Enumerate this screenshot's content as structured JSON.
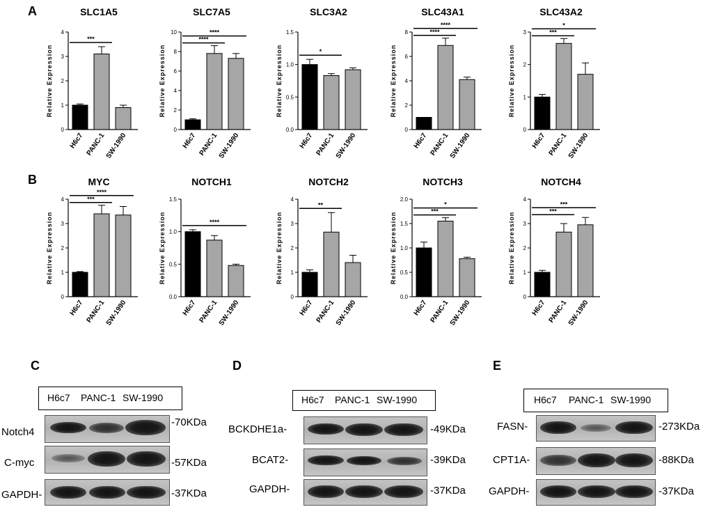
{
  "panel_labels": {
    "A": "A",
    "B": "B",
    "C": "C",
    "D": "D",
    "E": "E"
  },
  "chart_data": [
    {
      "type": "bar",
      "title": "SLC1A5",
      "ylabel": "Relative Expression",
      "categories": [
        "H6c7",
        "PANC-1",
        "SW-1990"
      ],
      "values": [
        1.0,
        3.1,
        0.9
      ],
      "errors": [
        0.05,
        0.3,
        0.1
      ],
      "ylim": [
        0,
        4
      ],
      "yticks": [
        0,
        1,
        2,
        3,
        4
      ],
      "significance": [
        {
          "from": 0,
          "to": 1,
          "label": "***"
        }
      ]
    },
    {
      "type": "bar",
      "title": "SLC7A5",
      "ylabel": "Relative Expression",
      "categories": [
        "H6c7",
        "PANC-1",
        "SW-1990"
      ],
      "values": [
        1.0,
        7.8,
        7.3
      ],
      "errors": [
        0.1,
        0.8,
        0.5
      ],
      "ylim": [
        0,
        10
      ],
      "yticks": [
        0,
        2,
        4,
        6,
        8,
        10
      ],
      "significance": [
        {
          "from": 0,
          "to": 1,
          "label": "****"
        },
        {
          "from": 0,
          "to": 2,
          "label": "****"
        }
      ]
    },
    {
      "type": "bar",
      "title": "SLC3A2",
      "ylabel": "Relative Expression",
      "categories": [
        "H6c7",
        "PANC-1",
        "SW-1990"
      ],
      "values": [
        1.0,
        0.83,
        0.92
      ],
      "errors": [
        0.08,
        0.03,
        0.03
      ],
      "ylim": [
        0,
        1.5
      ],
      "yticks": [
        "0.0",
        "0.5",
        "1.0",
        "1.5"
      ],
      "significance": [
        {
          "from": 0,
          "to": 1,
          "label": "*"
        }
      ]
    },
    {
      "type": "bar",
      "title": "SLC43A1",
      "ylabel": "Relative Expression",
      "categories": [
        "H6c7",
        "PANC-1",
        "SW-1990"
      ],
      "values": [
        1.0,
        6.9,
        4.1
      ],
      "errors": [
        0.0,
        0.6,
        0.2
      ],
      "ylim": [
        0,
        8
      ],
      "yticks": [
        0,
        2,
        4,
        6,
        8
      ],
      "significance": [
        {
          "from": 0,
          "to": 1,
          "label": "****"
        },
        {
          "from": 0,
          "to": 2,
          "label": "****"
        }
      ]
    },
    {
      "type": "bar",
      "title": "SLC43A2",
      "ylabel": "Relative Expression",
      "categories": [
        "H6c7",
        "PANC-1",
        "SW-1990"
      ],
      "values": [
        1.0,
        2.65,
        1.7
      ],
      "errors": [
        0.08,
        0.15,
        0.35
      ],
      "ylim": [
        0,
        3
      ],
      "yticks": [
        0,
        1,
        2,
        3
      ],
      "significance": [
        {
          "from": 0,
          "to": 1,
          "label": "***"
        },
        {
          "from": 0,
          "to": 2,
          "label": "*"
        }
      ]
    },
    {
      "type": "bar",
      "title": "MYC",
      "ylabel": "Relative Expression",
      "categories": [
        "H6c7",
        "PANC-1",
        "SW-1990"
      ],
      "values": [
        1.0,
        3.4,
        3.35
      ],
      "errors": [
        0.03,
        0.35,
        0.35
      ],
      "ylim": [
        0,
        4
      ],
      "yticks": [
        0,
        1,
        2,
        3,
        4
      ],
      "significance": [
        {
          "from": 0,
          "to": 1,
          "label": "***"
        },
        {
          "from": 0,
          "to": 2,
          "label": "****"
        }
      ]
    },
    {
      "type": "bar",
      "title": "NOTCH1",
      "ylabel": "Relative Expression",
      "categories": [
        "H6c7",
        "PANC-1",
        "SW-1990"
      ],
      "values": [
        1.0,
        0.87,
        0.48
      ],
      "errors": [
        0.03,
        0.07,
        0.02
      ],
      "ylim": [
        0,
        1.5
      ],
      "yticks": [
        "0.0",
        "0.5",
        "1.0",
        "1.5"
      ],
      "significance": [
        {
          "from": 0,
          "to": 2,
          "label": "****"
        }
      ]
    },
    {
      "type": "bar",
      "title": "NOTCH2",
      "ylabel": "Relative Expression",
      "categories": [
        "H6c7",
        "PANC-1",
        "SW-1990"
      ],
      "values": [
        1.0,
        2.65,
        1.4
      ],
      "errors": [
        0.1,
        0.8,
        0.3
      ],
      "ylim": [
        0,
        4
      ],
      "yticks": [
        0,
        1,
        2,
        3,
        4
      ],
      "significance": [
        {
          "from": 0,
          "to": 1,
          "label": "**"
        }
      ]
    },
    {
      "type": "bar",
      "title": "NOTCH3",
      "ylabel": "Relative Expression",
      "categories": [
        "H6c7",
        "PANC-1",
        "SW-1990"
      ],
      "values": [
        1.0,
        1.55,
        0.78
      ],
      "errors": [
        0.12,
        0.07,
        0.03
      ],
      "ylim": [
        0,
        2
      ],
      "yticks": [
        "0.0",
        "0.5",
        "1.0",
        "1.5",
        "2.0"
      ],
      "significance": [
        {
          "from": 0,
          "to": 1,
          "label": "***"
        },
        {
          "from": 0,
          "to": 2,
          "label": "*"
        }
      ]
    },
    {
      "type": "bar",
      "title": "NOTCH4",
      "ylabel": "Relative Expression",
      "categories": [
        "H6c7",
        "PANC-1",
        "SW-1990"
      ],
      "values": [
        1.0,
        2.65,
        2.95
      ],
      "errors": [
        0.08,
        0.35,
        0.3
      ],
      "ylim": [
        0,
        4
      ],
      "yticks": [
        0,
        1,
        2,
        3,
        4
      ],
      "significance": [
        {
          "from": 0,
          "to": 1,
          "label": "***"
        },
        {
          "from": 0,
          "to": 2,
          "label": "***"
        }
      ]
    }
  ],
  "bar_colors": [
    "#000000",
    "#a6a6a6",
    "#a6a6a6"
  ],
  "blots": [
    {
      "letter": "C",
      "lanes": [
        "H6c7",
        "PANC-1",
        "SW-1990"
      ],
      "rows": [
        {
          "protein": "Notch4",
          "mw": "-70KDa",
          "intensity": [
            "strong",
            "medium",
            "strong"
          ]
        },
        {
          "protein": "C-myc",
          "mw": "-57KDa",
          "intensity": [
            "faint",
            "strong",
            "strong"
          ]
        },
        {
          "protein": "GAPDH-",
          "mw": "-37KDa",
          "intensity": [
            "strong",
            "strong",
            "strong"
          ]
        }
      ]
    },
    {
      "letter": "D",
      "lanes": [
        "H6c7",
        "PANC-1",
        "SW-1990"
      ],
      "rows": [
        {
          "protein": "BCKDHE1a-",
          "mw": "-49KDa",
          "intensity": [
            "strong",
            "strong",
            "strong"
          ]
        },
        {
          "protein": "BCAT2-",
          "mw": "-39KDa",
          "intensity": [
            "strong",
            "strong",
            "medium"
          ]
        },
        {
          "protein": "GAPDH-",
          "mw": "-37KDa",
          "intensity": [
            "strong",
            "strong",
            "strong"
          ]
        }
      ]
    },
    {
      "letter": "E",
      "lanes": [
        "H6c7",
        "PANC-1",
        "SW-1990"
      ],
      "rows": [
        {
          "protein": "FASN-",
          "mw": "-273KDa",
          "intensity": [
            "strong",
            "faint",
            "strong"
          ]
        },
        {
          "protein": "CPT1A-",
          "mw": "-88KDa",
          "intensity": [
            "strong",
            "strong",
            "strong"
          ]
        },
        {
          "protein": "GAPDH-",
          "mw": "-37KDa",
          "intensity": [
            "strong",
            "strong",
            "strong"
          ]
        }
      ]
    }
  ]
}
